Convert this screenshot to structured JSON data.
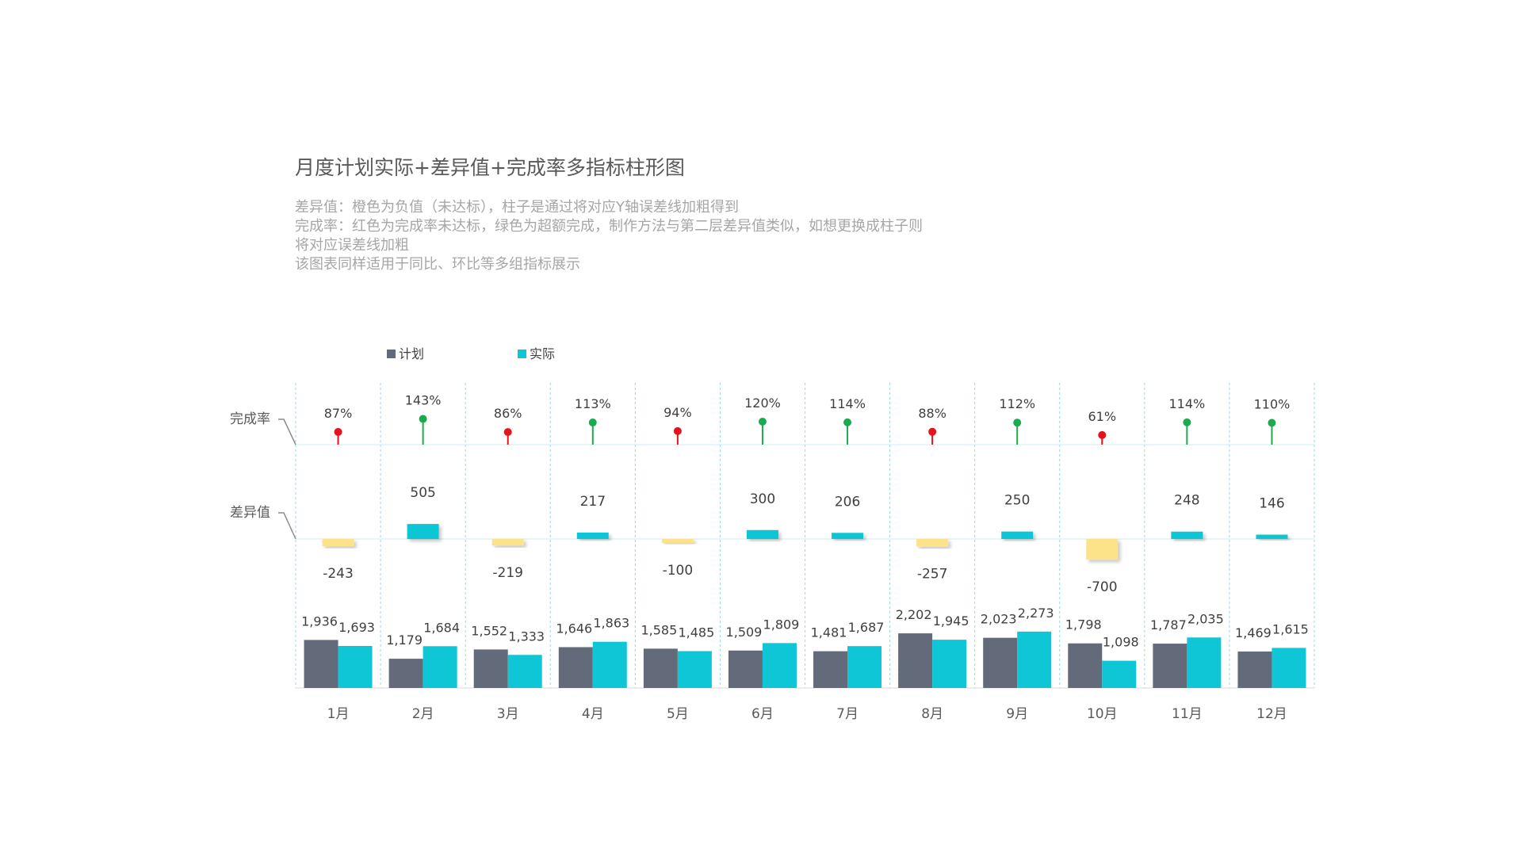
{
  "title": "月度计划实际+差异值+完成率多指标柱形图",
  "notes": [
    "差异值：橙色为负值（未达标），柱子是通过将对应Y轴误差线加粗得到",
    "完成率：红色为完成率未达标，绿色为超额完成，制作方法与第二层差异值类似，如想更换成柱子则",
    "将对应误差线加粗",
    "该图表同样适用于同比、环比等多组指标展示"
  ],
  "chart_data": {
    "type": "bar",
    "categories": [
      "1月",
      "2月",
      "3月",
      "4月",
      "5月",
      "6月",
      "7月",
      "8月",
      "9月",
      "10月",
      "11月",
      "12月"
    ],
    "series": [
      {
        "name": "计划",
        "color": "#636b7b",
        "values": [
          1936,
          1179,
          1552,
          1646,
          1585,
          1509,
          1481,
          2202,
          2023,
          1798,
          1787,
          1469
        ]
      },
      {
        "name": "实际",
        "color": "#0ec6d5",
        "values": [
          1693,
          1684,
          1333,
          1863,
          1485,
          1809,
          1687,
          1945,
          2273,
          1098,
          2035,
          1615
        ]
      }
    ],
    "difference": {
      "label": "差异值",
      "values": [
        -243,
        505,
        -219,
        217,
        -100,
        300,
        206,
        -257,
        250,
        -700,
        248,
        146
      ],
      "positive_color": "#0ec6d5",
      "negative_color": "#fce38a"
    },
    "completion_rate": {
      "label": "完成率",
      "values": [
        87,
        143,
        86,
        113,
        94,
        120,
        114,
        88,
        112,
        61,
        114,
        110
      ],
      "labels": [
        "87%",
        "143%",
        "86%",
        "113%",
        "94%",
        "120%",
        "114%",
        "88%",
        "112%",
        "61%",
        "114%",
        "110%"
      ],
      "above_color": "#1aab4f",
      "below_color": "#e3141e"
    },
    "legend_position": "top-left",
    "grid": "vertical dashed separators",
    "xlabel": "",
    "ylabel": ""
  }
}
